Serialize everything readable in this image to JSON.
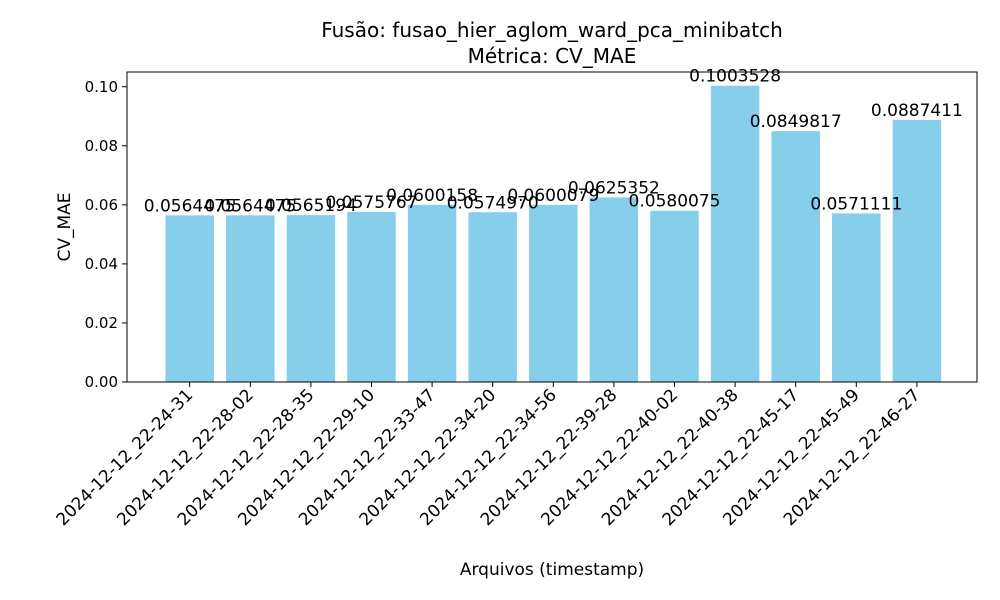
{
  "chart_data": {
    "type": "bar",
    "title": "Fusão: fusao_hier_aglom_ward_pca_minibatch",
    "subtitle": "Métrica: CV_MAE",
    "xlabel": "Arquivos (timestamp)",
    "ylabel": "CV_MAE",
    "ylim": [
      0,
      0.105
    ],
    "yticks": [
      "0.00",
      "0.02",
      "0.04",
      "0.06",
      "0.08",
      "0.10"
    ],
    "grid": false,
    "bar_color": "#87ceeb",
    "categories": [
      "2024-12-12_22-24-31",
      "2024-12-12_22-28-02",
      "2024-12-12_22-28-35",
      "2024-12-12_22-29-10",
      "2024-12-12_22-33-47",
      "2024-12-12_22-34-20",
      "2024-12-12_22-34-56",
      "2024-12-12_22-39-28",
      "2024-12-12_22-40-02",
      "2024-12-12_22-40-38",
      "2024-12-12_22-45-17",
      "2024-12-12_22-45-49",
      "2024-12-12_22-46-27"
    ],
    "values": [
      0.056447,
      0.056447,
      0.056519,
      0.057577,
      0.060016,
      0.057497,
      0.060008,
      0.062535,
      0.058008,
      0.100353,
      0.084982,
      0.057111,
      0.088741
    ],
    "data_labels": [
      "0.0564475",
      "0.0564475",
      "0.0565194",
      "0.0575767",
      "0.0600158",
      "0.0574970",
      "0.0600079",
      "0.0625352",
      "0.0580075",
      "0.1003528",
      "0.0849817",
      "0.0571111",
      "0.0887411"
    ]
  }
}
